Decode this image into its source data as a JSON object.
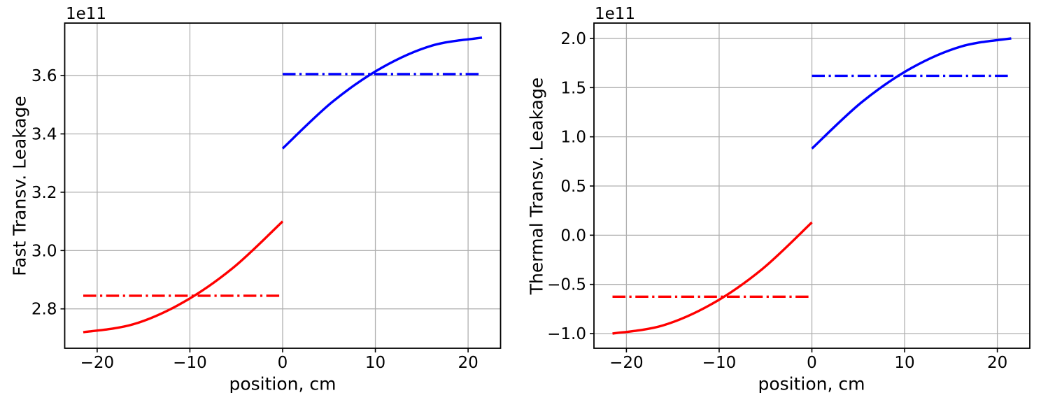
{
  "styles": {
    "red": "#ff0000",
    "blue": "#0000ff",
    "grid_color": "#b0b0b0",
    "axis_color": "#000000",
    "text_color": "#000000",
    "grid_width": 1.3,
    "spine_width": 1.8,
    "tick_width": 1.6,
    "tick_length": 6,
    "line_width": 3.4,
    "dashdot_pattern": [
      18.5,
      5.5,
      3.2,
      5.5
    ],
    "tick_font_size": 23,
    "label_font_size": 25
  },
  "chart_data": [
    {
      "id": "fast",
      "type": "line",
      "title": "",
      "xlabel": "position, cm",
      "ylabel": "Fast Transv. Leakage",
      "y_offset_text": "1e11",
      "y_multiplier": 100000000000.0,
      "grid": true,
      "legend": null,
      "xlim": [
        -23.5,
        23.5
      ],
      "ylim": [
        2.665,
        3.78
      ],
      "xticks": [
        {
          "value": -20,
          "label": "−20"
        },
        {
          "value": -10,
          "label": "−10"
        },
        {
          "value": 0,
          "label": "0"
        },
        {
          "value": 10,
          "label": "10"
        },
        {
          "value": 20,
          "label": "20"
        }
      ],
      "yticks": [
        {
          "value": 2.8,
          "label": "2.8"
        },
        {
          "value": 3.0,
          "label": "3.0"
        },
        {
          "value": 3.2,
          "label": "3.2"
        },
        {
          "value": 3.4,
          "label": "3.4"
        },
        {
          "value": 3.6,
          "label": "3.6"
        }
      ],
      "series": [
        {
          "name": "fast-left-region-curve",
          "color": "#ff0000",
          "style": "solid",
          "smooth": true,
          "x": [
            -21.5,
            -16.125,
            -10.75,
            -5.375,
            0
          ],
          "y": [
            2.72,
            2.747,
            2.822,
            2.94,
            3.1
          ]
        },
        {
          "name": "fast-right-region-curve",
          "color": "#0000ff",
          "style": "solid",
          "smooth": true,
          "x": [
            0,
            5.375,
            10.75,
            16.125,
            21.5
          ],
          "y": [
            3.35,
            3.51,
            3.628,
            3.703,
            3.73
          ]
        },
        {
          "name": "fast-left-region-average-line",
          "color": "#ff0000",
          "style": "dashdot",
          "smooth": false,
          "x": [
            -21.5,
            0
          ],
          "y": [
            2.845,
            2.845
          ]
        },
        {
          "name": "fast-right-region-average-line",
          "color": "#0000ff",
          "style": "dashdot",
          "smooth": false,
          "x": [
            0,
            21.5
          ],
          "y": [
            3.605,
            3.605
          ]
        }
      ]
    },
    {
      "id": "thermal",
      "type": "line",
      "title": "",
      "xlabel": "position, cm",
      "ylabel": "Thermal Transv. Leakage",
      "y_offset_text": "1e11",
      "y_multiplier": 100000000000.0,
      "grid": true,
      "legend": null,
      "xlim": [
        -23.5,
        23.5
      ],
      "ylim": [
        -1.149,
        2.156
      ],
      "xticks": [
        {
          "value": -20,
          "label": "−20"
        },
        {
          "value": -10,
          "label": "−10"
        },
        {
          "value": 0,
          "label": "0"
        },
        {
          "value": 10,
          "label": "10"
        },
        {
          "value": 20,
          "label": "20"
        }
      ],
      "yticks": [
        {
          "value": -1.0,
          "label": "−1.0"
        },
        {
          "value": -0.5,
          "label": "−0.5"
        },
        {
          "value": 0.0,
          "label": "0.0"
        },
        {
          "value": 0.5,
          "label": "0.5"
        },
        {
          "value": 1.0,
          "label": "1.0"
        },
        {
          "value": 1.5,
          "label": "1.5"
        },
        {
          "value": 2.0,
          "label": "2.0"
        }
      ],
      "series": [
        {
          "name": "thermal-left-region-curve",
          "color": "#ff0000",
          "style": "solid",
          "smooth": true,
          "x": [
            -21.5,
            -16.125,
            -10.75,
            -5.375,
            0
          ],
          "y": [
            -1.0,
            -0.919,
            -0.697,
            -0.346,
            0.13
          ]
        },
        {
          "name": "thermal-right-region-curve",
          "color": "#0000ff",
          "style": "solid",
          "smooth": true,
          "x": [
            0,
            5.375,
            10.75,
            16.125,
            21.5
          ],
          "y": [
            0.88,
            1.352,
            1.7,
            1.919,
            2.0
          ]
        },
        {
          "name": "thermal-left-region-average-line",
          "color": "#ff0000",
          "style": "dashdot",
          "smooth": false,
          "x": [
            -21.5,
            0
          ],
          "y": [
            -0.625,
            -0.625
          ]
        },
        {
          "name": "thermal-right-region-average-line",
          "color": "#0000ff",
          "style": "dashdot",
          "smooth": false,
          "x": [
            0,
            21.5
          ],
          "y": [
            1.62,
            1.62
          ]
        }
      ]
    }
  ]
}
